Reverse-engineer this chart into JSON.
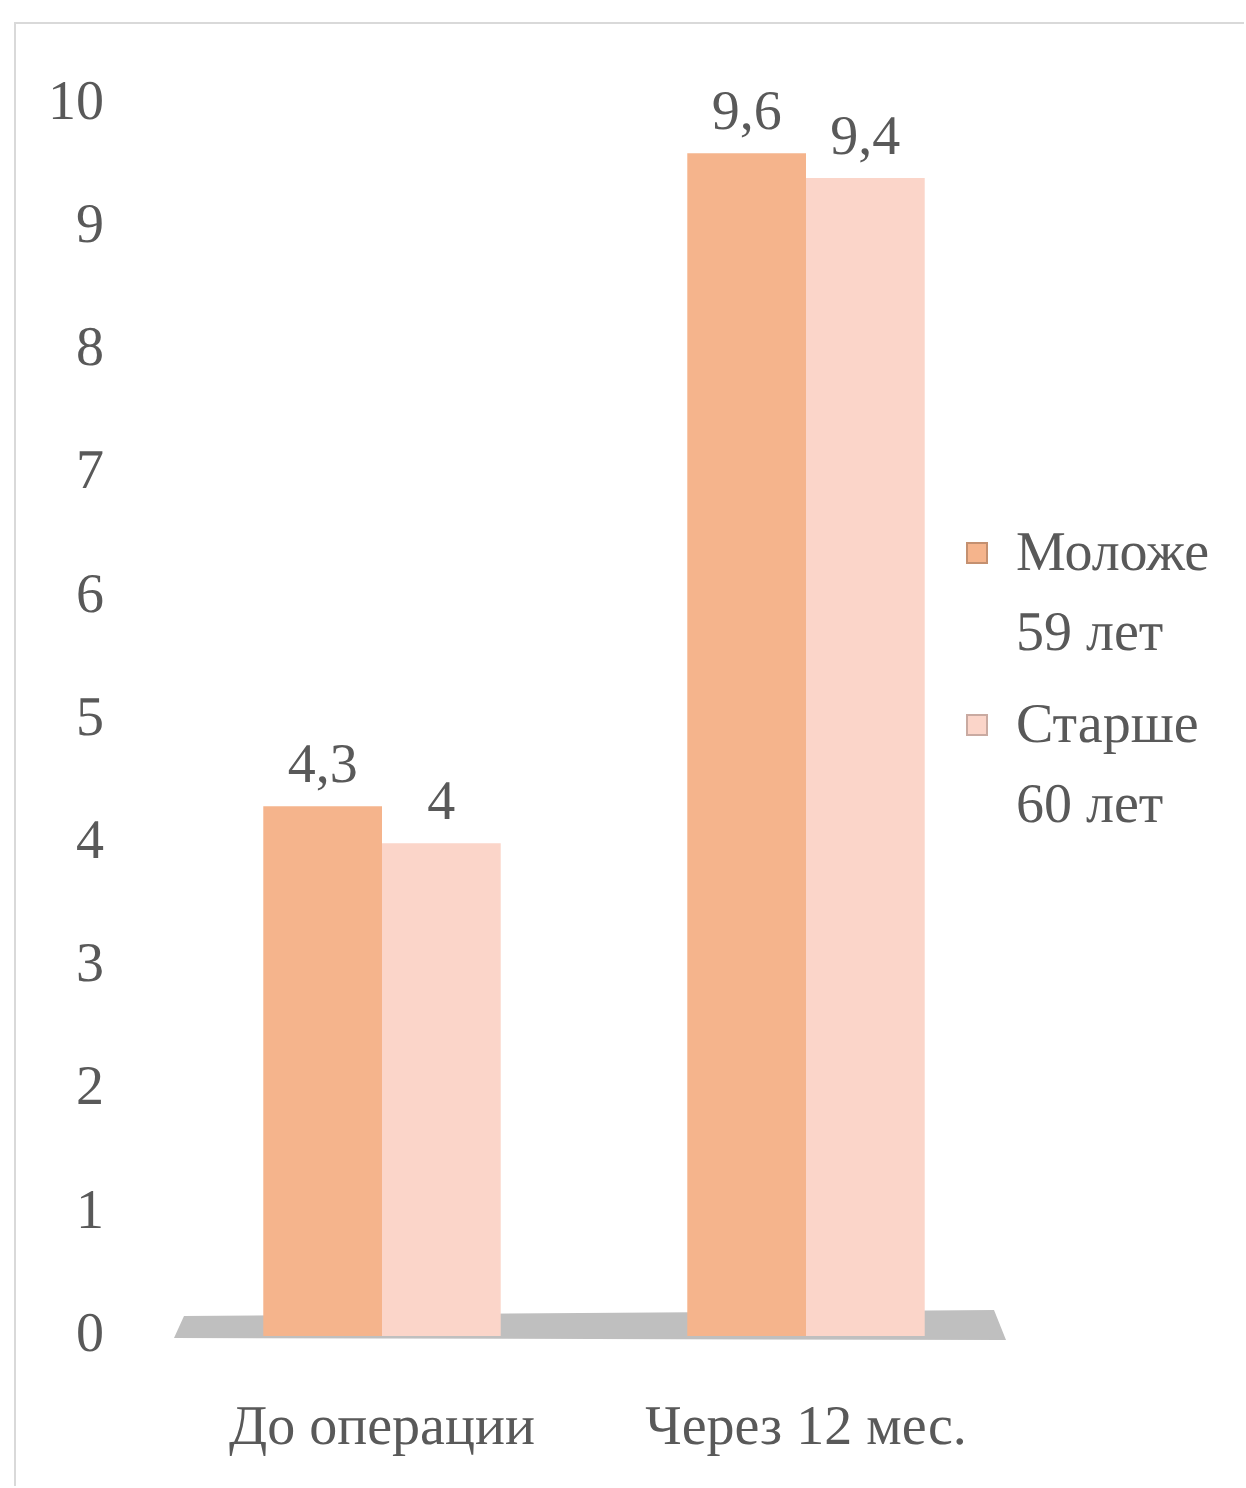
{
  "chart_data": {
    "type": "bar",
    "categories": [
      "До операции",
      "Через 12 мес."
    ],
    "series": [
      {
        "name": "Моложе 59 лет",
        "color": "#f5b48c",
        "values": [
          4.3,
          9.6
        ],
        "value_labels": [
          "4,3",
          "9,6"
        ]
      },
      {
        "name": "Старше 60 лет",
        "color": "#fbd5c9",
        "values": [
          4,
          9.4
        ],
        "value_labels": [
          "4",
          "9,4"
        ]
      }
    ],
    "ylim": [
      0,
      10
    ],
    "yticks": [
      0,
      1,
      2,
      3,
      4,
      5,
      6,
      7,
      8,
      9,
      10
    ],
    "legend": "right"
  }
}
